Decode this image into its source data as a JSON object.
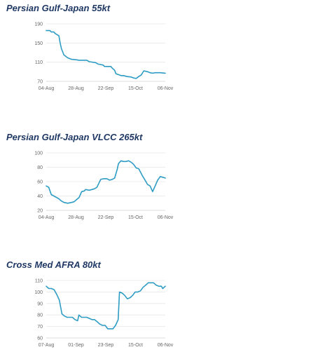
{
  "chart_data": [
    {
      "type": "line",
      "title": "Persian Gulf-Japan 55kt",
      "xlabel": "",
      "ylabel": "",
      "x_ticks": [
        "04-Aug",
        "28-Aug",
        "22-Sep",
        "15-Oct",
        "06-Nov"
      ],
      "x_range": [
        "2016-08-04",
        "2016-11-06"
      ],
      "y_ticks": [
        70,
        110,
        150,
        190
      ],
      "ylim": [
        70,
        190
      ],
      "grid": "horizontal",
      "line_color": "#2e9cc4",
      "series": [
        {
          "x": [
            "2016-08-04",
            "2016-08-07",
            "2016-08-08",
            "2016-08-10",
            "2016-08-11",
            "2016-08-14",
            "2016-08-15",
            "2016-08-16",
            "2016-08-18",
            "2016-08-19",
            "2016-08-21",
            "2016-08-24",
            "2016-08-28",
            "2016-08-30",
            "2016-09-05",
            "2016-09-07",
            "2016-09-12",
            "2016-09-14",
            "2016-09-18",
            "2016-09-19",
            "2016-09-24",
            "2016-09-25",
            "2016-09-27",
            "2016-09-28",
            "2016-10-02",
            "2016-10-04",
            "2016-10-07",
            "2016-10-10",
            "2016-10-12",
            "2016-10-14",
            "2016-10-16",
            "2016-10-18",
            "2016-10-20",
            "2016-10-23",
            "2016-10-25",
            "2016-10-27",
            "2016-10-29",
            "2016-11-02",
            "2016-11-06"
          ],
          "y": [
            176,
            176,
            173,
            173,
            170,
            165,
            150,
            138,
            125,
            123,
            119,
            116,
            115,
            114,
            114,
            111,
            109,
            106,
            104,
            101,
            101,
            98,
            93,
            86,
            82,
            82,
            80,
            79,
            77,
            76,
            80,
            83,
            92,
            90,
            88,
            87,
            88,
            88,
            87
          ]
        }
      ]
    },
    {
      "type": "line",
      "title": "Persian Gulf-Japan VLCC 265kt",
      "xlabel": "",
      "ylabel": "",
      "x_ticks": [
        "04-Aug",
        "28-Aug",
        "22-Sep",
        "15-Oct",
        "06-Nov"
      ],
      "x_range": [
        "2016-08-04",
        "2016-11-06"
      ],
      "y_ticks": [
        20,
        40,
        60,
        80,
        100
      ],
      "ylim": [
        20,
        100
      ],
      "grid": "horizontal",
      "line_color": "#2e9cc4",
      "series": [
        {
          "x": [
            "2016-08-04",
            "2016-08-06",
            "2016-08-08",
            "2016-08-10",
            "2016-08-12",
            "2016-08-14",
            "2016-08-16",
            "2016-08-18",
            "2016-08-21",
            "2016-08-24",
            "2016-08-26",
            "2016-08-28",
            "2016-08-30",
            "2016-09-01",
            "2016-09-03",
            "2016-09-04",
            "2016-09-07",
            "2016-09-09",
            "2016-09-11",
            "2016-09-13",
            "2016-09-16",
            "2016-09-18",
            "2016-09-21",
            "2016-09-23",
            "2016-09-25",
            "2016-09-27",
            "2016-09-29",
            "2016-09-30",
            "2016-10-02",
            "2016-10-04",
            "2016-10-06",
            "2016-10-08",
            "2016-10-10",
            "2016-10-12",
            "2016-10-14",
            "2016-10-16",
            "2016-10-19",
            "2016-10-21",
            "2016-10-23",
            "2016-10-25",
            "2016-10-27",
            "2016-10-29",
            "2016-10-31",
            "2016-11-02",
            "2016-11-04",
            "2016-11-06"
          ],
          "y": [
            54,
            52,
            42,
            40,
            38,
            36,
            33,
            31,
            30,
            31,
            32,
            35,
            38,
            46,
            47,
            49,
            48,
            49,
            50,
            52,
            63,
            64,
            64,
            62,
            63,
            65,
            77,
            85,
            89,
            88,
            88,
            89,
            87,
            84,
            79,
            78,
            68,
            62,
            56,
            54,
            46,
            54,
            62,
            67,
            66,
            65
          ]
        }
      ]
    },
    {
      "type": "line",
      "title": "Cross Med AFRA 80kt",
      "xlabel": "",
      "ylabel": "",
      "x_ticks": [
        "07-Aug",
        "01-Sep",
        "23-Sep",
        "15-Oct",
        "06-Nov"
      ],
      "x_range": [
        "2016-08-07",
        "2016-11-06"
      ],
      "y_ticks": [
        60,
        70,
        80,
        90,
        100,
        110
      ],
      "ylim": [
        60,
        110
      ],
      "grid": "horizontal",
      "line_color": "#2e9cc4",
      "series": [
        {
          "x": [
            "2016-08-07",
            "2016-08-09",
            "2016-08-11",
            "2016-08-13",
            "2016-08-15",
            "2016-08-17",
            "2016-08-19",
            "2016-08-21",
            "2016-08-23",
            "2016-08-25",
            "2016-08-27",
            "2016-08-29",
            "2016-08-31",
            "2016-09-01",
            "2016-09-03",
            "2016-09-05",
            "2016-09-07",
            "2016-09-09",
            "2016-09-11",
            "2016-09-13",
            "2016-09-15",
            "2016-09-17",
            "2016-09-19",
            "2016-09-21",
            "2016-09-23",
            "2016-09-25",
            "2016-09-27",
            "2016-09-29",
            "2016-10-01",
            "2016-10-02",
            "2016-10-04",
            "2016-10-06",
            "2016-10-08",
            "2016-10-10",
            "2016-10-12",
            "2016-10-14",
            "2016-10-16",
            "2016-10-18",
            "2016-10-20",
            "2016-10-22",
            "2016-10-24",
            "2016-10-26",
            "2016-10-28",
            "2016-10-30",
            "2016-11-01",
            "2016-11-03",
            "2016-11-04",
            "2016-11-06"
          ],
          "y": [
            105,
            103,
            103,
            102,
            98,
            93,
            81,
            79,
            78,
            78,
            78,
            76,
            75,
            80,
            78,
            78,
            78,
            77,
            76,
            76,
            74,
            72,
            71,
            71,
            68,
            68,
            68,
            71,
            76,
            100,
            99,
            97,
            94,
            95,
            97,
            100,
            100,
            101,
            104,
            106,
            108,
            108,
            108,
            106,
            105,
            105,
            103,
            105
          ]
        }
      ]
    }
  ]
}
